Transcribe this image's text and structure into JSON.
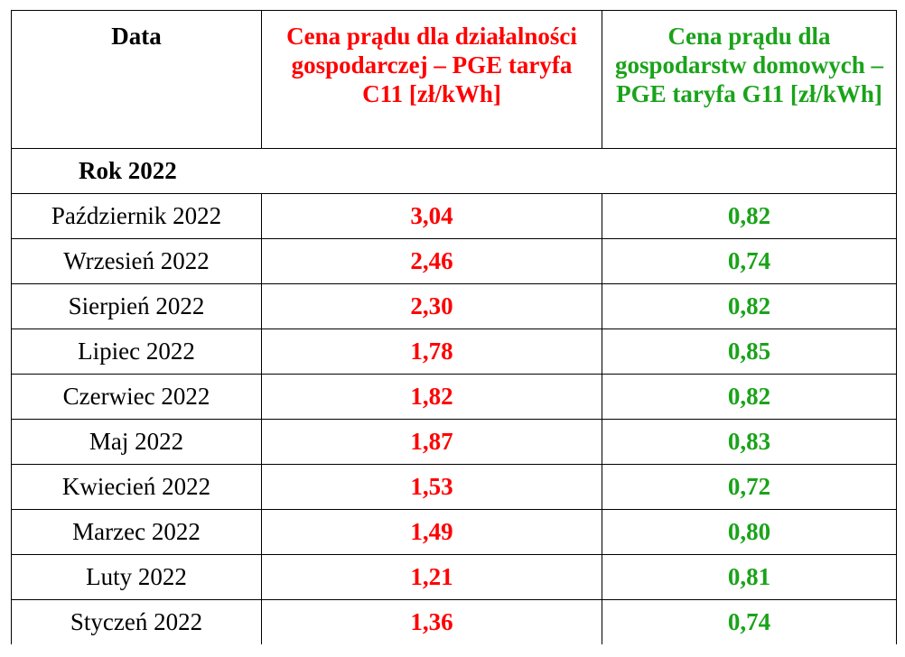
{
  "table": {
    "headers": {
      "date": "Data",
      "business": "Cena prądu dla działalności gospodarczej – PGE taryfa C11 [zł/kWh]",
      "household": "Cena prądu dla gospodarstw domowych – PGE taryfa G11 [zł/kWh]"
    },
    "year_label": "Rok 2022",
    "rows": [
      {
        "month": "Październik 2022",
        "c11": "3,04",
        "g11": "0,82"
      },
      {
        "month": "Wrzesień 2022",
        "c11": "2,46",
        "g11": "0,74"
      },
      {
        "month": "Sierpień 2022",
        "c11": "2,30",
        "g11": "0,82"
      },
      {
        "month": "Lipiec 2022",
        "c11": "1,78",
        "g11": "0,85"
      },
      {
        "month": "Czerwiec 2022",
        "c11": "1,82",
        "g11": "0,82"
      },
      {
        "month": "Maj 2022",
        "c11": "1,87",
        "g11": "0,83"
      },
      {
        "month": "Kwiecień 2022",
        "c11": "1,53",
        "g11": "0,72"
      },
      {
        "month": "Marzec 2022",
        "c11": "1,49",
        "g11": "0,80"
      },
      {
        "month": "Luty 2022",
        "c11": "1,21",
        "g11": "0,81"
      },
      {
        "month": "Styczeń 2022",
        "c11": "1,36",
        "g11": "0,74"
      }
    ]
  },
  "colors": {
    "business": "#ff0000",
    "household": "#1aa31a",
    "text": "#000000"
  }
}
